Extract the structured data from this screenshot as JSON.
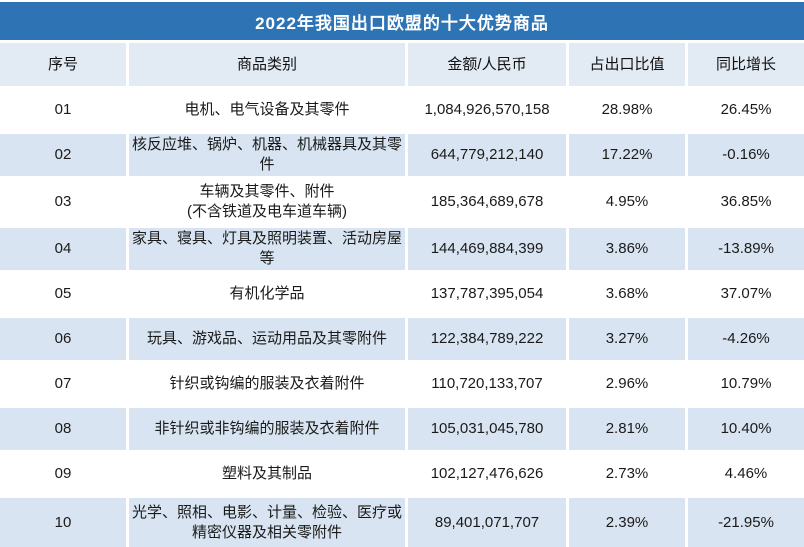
{
  "title": "2022年我国出口欧盟的十大优势商品",
  "colors": {
    "title_bar_bg": "#2E74B5",
    "title_text": "#FFFFFF",
    "header_row_bg": "#E2EAF4",
    "band_row_bg": "#D8E4F1",
    "plain_row_bg": "#FFFFFF",
    "body_text": "#1A1A1A",
    "separator": "#FFFFFF"
  },
  "table": {
    "headers": {
      "no": "序号",
      "category": "商品类别",
      "amount": "金额/人民币",
      "share": "占出口比值",
      "yoy": "同比增长"
    },
    "rows": [
      {
        "no": "01",
        "category": "电机、电气设备及其零件",
        "amount": "1,084,926,570,158",
        "share": "28.98%",
        "yoy": "26.45%"
      },
      {
        "no": "02",
        "category": "核反应堆、锅炉、机器、机械器具及其零件",
        "amount": "644,779,212,140",
        "share": "17.22%",
        "yoy": "-0.16%"
      },
      {
        "no": "03",
        "category": "车辆及其零件、附件\n(不含铁道及电车道车辆)",
        "amount": "185,364,689,678",
        "share": "4.95%",
        "yoy": "36.85%"
      },
      {
        "no": "04",
        "category": "家具、寝具、灯具及照明装置、活动房屋等",
        "amount": "144,469,884,399",
        "share": "3.86%",
        "yoy": "-13.89%"
      },
      {
        "no": "05",
        "category": "有机化学品",
        "amount": "137,787,395,054",
        "share": "3.68%",
        "yoy": "37.07%"
      },
      {
        "no": "06",
        "category": "玩具、游戏品、运动用品及其零附件",
        "amount": "122,384,789,222",
        "share": "3.27%",
        "yoy": "-4.26%"
      },
      {
        "no": "07",
        "category": "针织或钩编的服装及衣着附件",
        "amount": "110,720,133,707",
        "share": "2.96%",
        "yoy": "10.79%"
      },
      {
        "no": "08",
        "category": "非针织或非钩编的服装及衣着附件",
        "amount": "105,031,045,780",
        "share": "2.81%",
        "yoy": "10.40%"
      },
      {
        "no": "09",
        "category": "塑料及其制品",
        "amount": "102,127,476,626",
        "share": "2.73%",
        "yoy": "4.46%"
      },
      {
        "no": "10",
        "category": "光学、照相、电影、计量、检验、医疗或\n精密仪器及相关零附件",
        "amount": "89,401,071,707",
        "share": "2.39%",
        "yoy": "-21.95%"
      }
    ]
  },
  "chart_data": {
    "type": "table",
    "title": "2022年我国出口欧盟的十大优势商品",
    "columns": [
      "序号",
      "商品类别",
      "金额/人民币",
      "占出口比值",
      "同比增长"
    ],
    "rows": [
      [
        "01",
        "电机、电气设备及其零件",
        "1,084,926,570,158",
        "28.98%",
        "26.45%"
      ],
      [
        "02",
        "核反应堆、锅炉、机器、机械器具及其零件",
        "644,779,212,140",
        "17.22%",
        "-0.16%"
      ],
      [
        "03",
        "车辆及其零件、附件(不含铁道及电车道车辆)",
        "185,364,689,678",
        "4.95%",
        "36.85%"
      ],
      [
        "04",
        "家具、寝具、灯具及照明装置、活动房屋等",
        "144,469,884,399",
        "3.86%",
        "-13.89%"
      ],
      [
        "05",
        "有机化学品",
        "137,787,395,054",
        "3.68%",
        "37.07%"
      ],
      [
        "06",
        "玩具、游戏品、运动用品及其零附件",
        "122,384,789,222",
        "3.27%",
        "-4.26%"
      ],
      [
        "07",
        "针织或钩编的服装及衣着附件",
        "110,720,133,707",
        "2.96%",
        "10.79%"
      ],
      [
        "08",
        "非针织或非钩编的服装及衣着附件",
        "105,031,045,780",
        "2.81%",
        "10.40%"
      ],
      [
        "09",
        "塑料及其制品",
        "102,127,476,626",
        "2.73%",
        "4.46%"
      ],
      [
        "10",
        "光学、照相、电影、计量、检验、医疗或精密仪器及相关零附件",
        "89,401,071,707",
        "2.39%",
        "-21.95%"
      ]
    ],
    "notes": {
      "amount_unit": "人民币 (CNY)",
      "banding": "even rows light blue, odd rows white",
      "legend_position": "none",
      "grid": "white 3px separators between cells"
    }
  }
}
